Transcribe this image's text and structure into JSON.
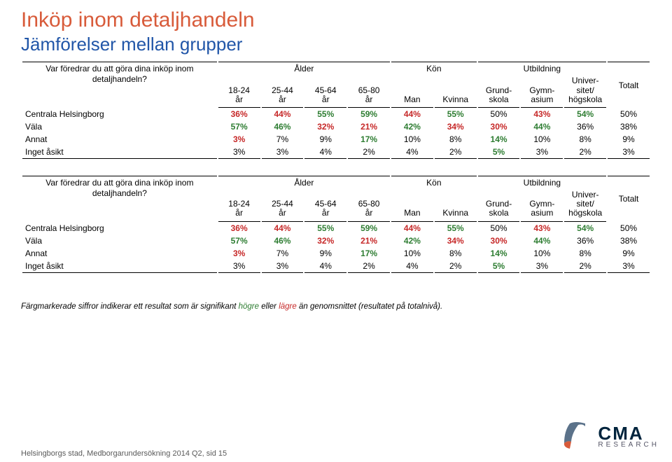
{
  "title": "Inköp inom detaljhandeln",
  "subtitle": "Jämförelser mellan grupper",
  "groupHeaders": {
    "g1": "Ålder",
    "g2": "Kön",
    "g3": "Utbildning",
    "totalt": "Totalt"
  },
  "subHeaders": {
    "c1": "18-24 år",
    "c2": "25-44 år",
    "c3": "45-64 år",
    "c4": "65-80 år",
    "c5": "Man",
    "c6": "Kvinna",
    "c7": "Grund- skola",
    "c8": "Gymn- asium",
    "c9": "Univer- sitet/ högskola"
  },
  "question": "Var föredrar du att göra dina inköp inom detaljhandeln?",
  "rows": [
    {
      "label": "Centrala Helsingborg",
      "cells": [
        {
          "v": "36%",
          "c": "lo"
        },
        {
          "v": "44%",
          "c": "lo"
        },
        {
          "v": "55%",
          "c": "hi"
        },
        {
          "v": "59%",
          "c": "hi"
        },
        {
          "v": "44%",
          "c": "lo"
        },
        {
          "v": "55%",
          "c": "hi"
        },
        {
          "v": "50%",
          "c": ""
        },
        {
          "v": "43%",
          "c": "lo"
        },
        {
          "v": "54%",
          "c": "hi"
        },
        {
          "v": "50%",
          "c": ""
        }
      ]
    },
    {
      "label": "Väla",
      "cells": [
        {
          "v": "57%",
          "c": "hi"
        },
        {
          "v": "46%",
          "c": "hi"
        },
        {
          "v": "32%",
          "c": "lo"
        },
        {
          "v": "21%",
          "c": "lo"
        },
        {
          "v": "42%",
          "c": "hi"
        },
        {
          "v": "34%",
          "c": "lo"
        },
        {
          "v": "30%",
          "c": "lo"
        },
        {
          "v": "44%",
          "c": "hi"
        },
        {
          "v": "36%",
          "c": ""
        },
        {
          "v": "38%",
          "c": ""
        }
      ]
    },
    {
      "label": "Annat",
      "cells": [
        {
          "v": "3%",
          "c": "lo"
        },
        {
          "v": "7%",
          "c": ""
        },
        {
          "v": "9%",
          "c": ""
        },
        {
          "v": "17%",
          "c": "hi"
        },
        {
          "v": "10%",
          "c": ""
        },
        {
          "v": "8%",
          "c": ""
        },
        {
          "v": "14%",
          "c": "hi"
        },
        {
          "v": "10%",
          "c": ""
        },
        {
          "v": "8%",
          "c": ""
        },
        {
          "v": "9%",
          "c": ""
        }
      ]
    },
    {
      "label": "Inget åsikt",
      "cells": [
        {
          "v": "3%",
          "c": ""
        },
        {
          "v": "3%",
          "c": ""
        },
        {
          "v": "4%",
          "c": ""
        },
        {
          "v": "2%",
          "c": ""
        },
        {
          "v": "4%",
          "c": ""
        },
        {
          "v": "2%",
          "c": ""
        },
        {
          "v": "5%",
          "c": "hi"
        },
        {
          "v": "3%",
          "c": ""
        },
        {
          "v": "2%",
          "c": ""
        },
        {
          "v": "3%",
          "c": ""
        }
      ]
    }
  ],
  "footnote": {
    "pre": "Färgmarkerade siffror indikerar ett resultat som är signifikant ",
    "hi": "högre",
    "mid": " eller ",
    "lo": "lägre",
    "post": " än genomsnittet (resultatet på totalnivå)."
  },
  "footer": "Helsingborgs stad, Medborgarundersökning 2014 Q2, sid 15",
  "logo": {
    "cma": "CMA",
    "research": "RESEARCH"
  }
}
